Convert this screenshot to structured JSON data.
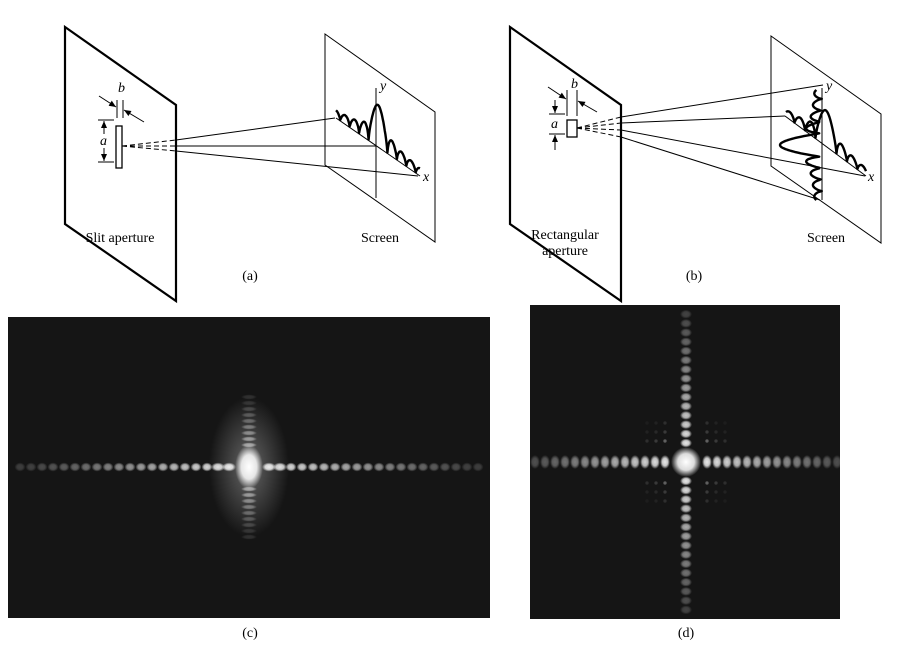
{
  "panel_a": {
    "aperture_label": "Slit aperture",
    "screen_label": "Screen",
    "caption": "(a)",
    "dim_width": "b",
    "dim_height": "a",
    "axis_y": "y",
    "axis_x": "x"
  },
  "panel_b": {
    "aperture_label_line1": "Rectangular",
    "aperture_label_line2": "aperture",
    "screen_label": "Screen",
    "caption": "(b)",
    "dim_width": "b",
    "dim_height": "a",
    "axis_y": "y",
    "axis_x": "x"
  },
  "panel_c": {
    "caption": "(c)"
  },
  "panel_d": {
    "caption": "(d)"
  },
  "colors": {
    "background": "#ffffff",
    "line": "#000000",
    "photo_bg": "#151515",
    "spot": "#ffffff"
  }
}
